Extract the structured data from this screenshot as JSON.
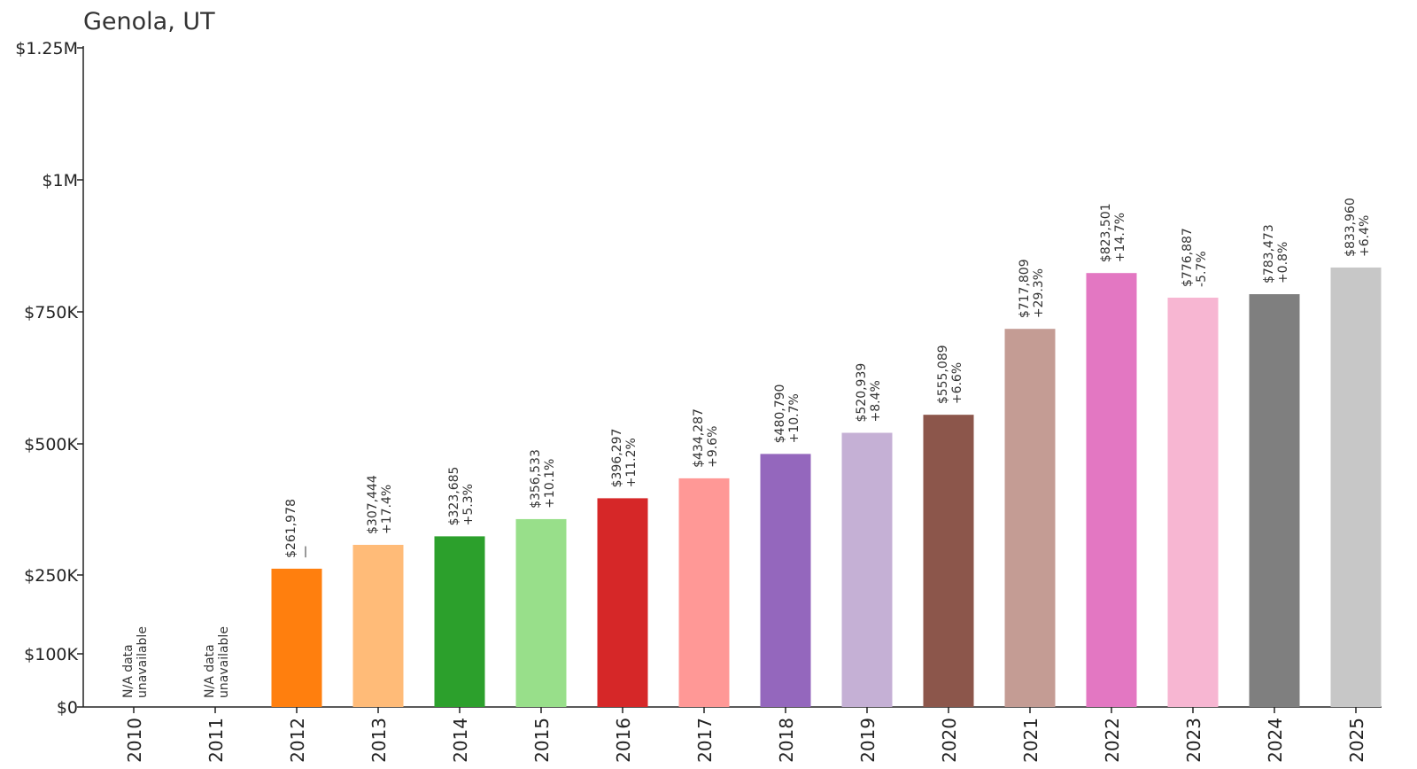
{
  "chart_data": {
    "type": "bar",
    "title": "Genola, UT",
    "xlabel": "",
    "ylabel": "",
    "ylim": [
      0,
      1250000
    ],
    "yticks": [
      {
        "value": 0,
        "label": "$0"
      },
      {
        "value": 100000,
        "label": "$100K"
      },
      {
        "value": 250000,
        "label": "$250K"
      },
      {
        "value": 500000,
        "label": "$500K"
      },
      {
        "value": 750000,
        "label": "$750K"
      },
      {
        "value": 1000000,
        "label": "$1M"
      },
      {
        "value": 1250000,
        "label": "$1.25M"
      }
    ],
    "categories": [
      "2010",
      "2011",
      "2012",
      "2013",
      "2014",
      "2015",
      "2016",
      "2017",
      "2018",
      "2019",
      "2020",
      "2021",
      "2022",
      "2023",
      "2024",
      "2025"
    ],
    "values": [
      null,
      null,
      261978,
      307444,
      323685,
      356533,
      396297,
      434287,
      480790,
      520939,
      555089,
      717809,
      823501,
      776887,
      783473,
      833960
    ],
    "value_labels": [
      "N/A data",
      "N/A data",
      "$261,978",
      "$307,444",
      "$323,685",
      "$356,533",
      "$396,297",
      "$434,287",
      "$480,790",
      "$520,939",
      "$555,089",
      "$717,809",
      "$823,501",
      "$776,887",
      "$783,473",
      "$833,960"
    ],
    "change_labels": [
      "unavailable",
      "unavailable",
      "—",
      "+17.4%",
      "+5.3%",
      "+10.1%",
      "+11.2%",
      "+9.6%",
      "+10.7%",
      "+8.4%",
      "+6.6%",
      "+29.3%",
      "+14.7%",
      "-5.7%",
      "+0.8%",
      "+6.4%"
    ],
    "colors": [
      "#1f77b4",
      "#aec7e8",
      "#ff7f0e",
      "#ffbb78",
      "#2ca02c",
      "#98df8a",
      "#d62728",
      "#ff9896",
      "#9467bd",
      "#c5b0d5",
      "#8c564b",
      "#c49c94",
      "#e377c2",
      "#f7b6d2",
      "#7f7f7f",
      "#c7c7c7"
    ],
    "grid": false,
    "y_scale": "piecewise-linear"
  }
}
